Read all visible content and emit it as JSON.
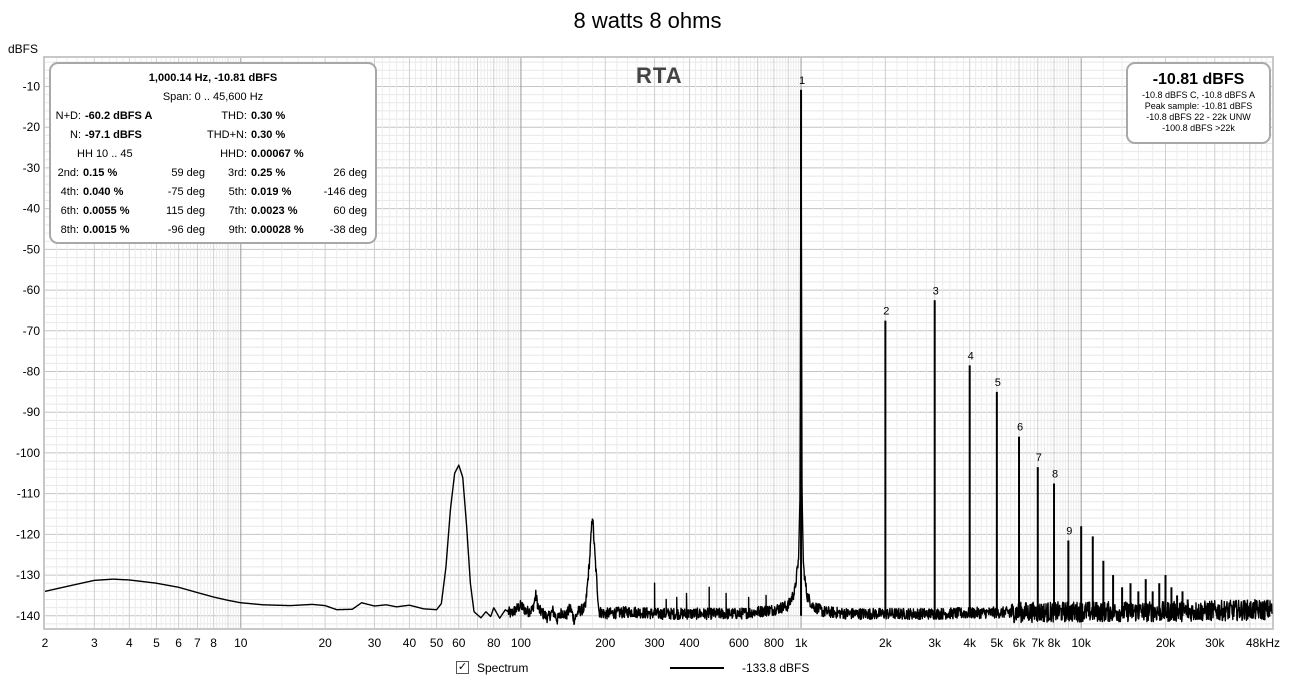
{
  "chart_data": {
    "type": "line",
    "title": "8 watts 8 ohms",
    "ylabel": "dBFS",
    "xlabel": "",
    "overlay_label": "RTA",
    "x_scale": "log",
    "xlim": [
      2,
      48000
    ],
    "ylim": [
      -143,
      -3
    ],
    "grid": true,
    "y_ticks": [
      -10,
      -20,
      -30,
      -40,
      -50,
      -60,
      -70,
      -80,
      -90,
      -100,
      -110,
      -120,
      -130,
      -140
    ],
    "x_ticks": [
      {
        "v": 2,
        "label": "2"
      },
      {
        "v": 3,
        "label": "3"
      },
      {
        "v": 4,
        "label": "4"
      },
      {
        "v": 5,
        "label": "5"
      },
      {
        "v": 6,
        "label": "6"
      },
      {
        "v": 7,
        "label": "7"
      },
      {
        "v": 8,
        "label": "8"
      },
      {
        "v": 10,
        "label": "10"
      },
      {
        "v": 20,
        "label": "20"
      },
      {
        "v": 30,
        "label": "30"
      },
      {
        "v": 40,
        "label": "40"
      },
      {
        "v": 50,
        "label": "50"
      },
      {
        "v": 60,
        "label": "60"
      },
      {
        "v": 80,
        "label": "80"
      },
      {
        "v": 100,
        "label": "100"
      },
      {
        "v": 200,
        "label": "200"
      },
      {
        "v": 300,
        "label": "300"
      },
      {
        "v": 400,
        "label": "400"
      },
      {
        "v": 600,
        "label": "600"
      },
      {
        "v": 800,
        "label": "800"
      },
      {
        "v": 1000,
        "label": "1k"
      },
      {
        "v": 2000,
        "label": "2k"
      },
      {
        "v": 3000,
        "label": "3k"
      },
      {
        "v": 4000,
        "label": "4k"
      },
      {
        "v": 5000,
        "label": "5k"
      },
      {
        "v": 6000,
        "label": "6k"
      },
      {
        "v": 7000,
        "label": "7k"
      },
      {
        "v": 8000,
        "label": "8k"
      },
      {
        "v": 10000,
        "label": "10k"
      },
      {
        "v": 20000,
        "label": "20k"
      },
      {
        "v": 30000,
        "label": "30k"
      },
      {
        "v": 48000,
        "label": "48kHz"
      }
    ],
    "series": [
      {
        "name": "Spectrum",
        "color": "#000000",
        "baseline": [
          [
            2,
            -134
          ],
          [
            2.5,
            -132.5
          ],
          [
            3,
            -131.3
          ],
          [
            3.5,
            -131
          ],
          [
            4,
            -131.2
          ],
          [
            5,
            -132
          ],
          [
            6,
            -133
          ],
          [
            7,
            -134.3
          ],
          [
            8,
            -135.4
          ],
          [
            9,
            -136.2
          ],
          [
            10,
            -136.8
          ],
          [
            12,
            -137.3
          ],
          [
            15,
            -137.5
          ],
          [
            18,
            -137.2
          ],
          [
            20,
            -137.5
          ],
          [
            22,
            -138.5
          ],
          [
            25,
            -138.4
          ],
          [
            27,
            -136.8
          ],
          [
            30,
            -137.6
          ],
          [
            33,
            -137.3
          ],
          [
            36,
            -137.8
          ],
          [
            40,
            -137.4
          ],
          [
            45,
            -138.3
          ],
          [
            50,
            -138.5
          ],
          [
            52,
            -137
          ],
          [
            54,
            -128
          ],
          [
            56,
            -114
          ],
          [
            58,
            -105
          ],
          [
            60,
            -103
          ],
          [
            62,
            -106
          ],
          [
            64,
            -118
          ],
          [
            66,
            -132
          ],
          [
            68,
            -139
          ],
          [
            72,
            -140.5
          ],
          [
            75,
            -139
          ],
          [
            78,
            -140.2
          ],
          [
            80,
            -138
          ],
          [
            84,
            -140.6
          ],
          [
            88,
            -138.5
          ],
          [
            92,
            -139.5
          ],
          [
            100,
            -137.5
          ],
          [
            105,
            -139
          ],
          [
            110,
            -138.5
          ],
          [
            113,
            -135
          ],
          [
            116,
            -138.6
          ],
          [
            125,
            -140.5
          ],
          [
            130,
            -138.8
          ],
          [
            135,
            -141
          ],
          [
            140,
            -139
          ],
          [
            145,
            -140
          ],
          [
            150,
            -138
          ],
          [
            155,
            -141
          ],
          [
            160,
            -139
          ],
          [
            170,
            -138
          ],
          [
            176,
            -126
          ],
          [
            180,
            -115
          ],
          [
            184,
            -126
          ],
          [
            190,
            -139
          ],
          [
            200,
            -139.5
          ],
          [
            250,
            -139
          ],
          [
            300,
            -139.5
          ],
          [
            400,
            -139.5
          ],
          [
            500,
            -139.5
          ],
          [
            600,
            -139.5
          ],
          [
            700,
            -139
          ],
          [
            800,
            -138.5
          ],
          [
            900,
            -137.5
          ],
          [
            950,
            -134
          ],
          [
            980,
            -126
          ],
          [
            992,
            -110
          ],
          [
            1000,
            -10.8
          ],
          [
            1008,
            -110
          ],
          [
            1020,
            -128
          ],
          [
            1050,
            -135
          ],
          [
            1100,
            -137.5
          ],
          [
            1200,
            -139
          ],
          [
            1500,
            -139.5
          ],
          [
            2000,
            -139.5
          ],
          [
            3000,
            -139.5
          ],
          [
            5000,
            -139.2
          ],
          [
            10000,
            -139
          ],
          [
            20000,
            -139
          ],
          [
            48000,
            -138.5
          ]
        ],
        "noise_db": 1.4,
        "spurs": [
          [
            300,
            -132
          ],
          [
            330,
            -136
          ],
          [
            360,
            -135.5
          ],
          [
            390,
            -134.5
          ],
          [
            470,
            -133
          ],
          [
            540,
            -134.5
          ],
          [
            650,
            -135.5
          ],
          [
            750,
            -135
          ]
        ],
        "harmonics": [
          {
            "n": "1",
            "f": 1000,
            "db": -10.8
          },
          {
            "n": "2",
            "f": 2000,
            "db": -67.5
          },
          {
            "n": "3",
            "f": 3000,
            "db": -62.5
          },
          {
            "n": "4",
            "f": 4000,
            "db": -78.5
          },
          {
            "n": "5",
            "f": 5000,
            "db": -85
          },
          {
            "n": "6",
            "f": 6000,
            "db": -96
          },
          {
            "n": "7",
            "f": 7000,
            "db": -103.5
          },
          {
            "n": "8",
            "f": 8000,
            "db": -107.5
          },
          {
            "n": "9",
            "f": 9000,
            "db": -121.5
          },
          {
            "n": "",
            "f": 10000,
            "db": -118
          },
          {
            "n": "",
            "f": 11000,
            "db": -120.5
          },
          {
            "n": "",
            "f": 12000,
            "db": -126.5
          },
          {
            "n": "",
            "f": 13000,
            "db": -130
          },
          {
            "n": "",
            "f": 14000,
            "db": -133
          },
          {
            "n": "",
            "f": 15000,
            "db": -132
          },
          {
            "n": "",
            "f": 16000,
            "db": -134
          },
          {
            "n": "",
            "f": 17000,
            "db": -131
          },
          {
            "n": "",
            "f": 18000,
            "db": -134
          },
          {
            "n": "",
            "f": 19000,
            "db": -132
          },
          {
            "n": "",
            "f": 20000,
            "db": -130
          },
          {
            "n": "",
            "f": 21000,
            "db": -133
          },
          {
            "n": "",
            "f": 22000,
            "db": -135
          },
          {
            "n": "",
            "f": 23000,
            "db": -134
          },
          {
            "n": "",
            "f": 24000,
            "db": -136
          }
        ]
      }
    ]
  },
  "stats_box": {
    "header1": "1,000.14 Hz, -10.81 dBFS",
    "header2": "Span: 0 .. 45,600 Hz",
    "nd_label": "N+D:",
    "nd_value": "-60.2 dBFS A",
    "thd_label": "THD:",
    "thd_value": "0.30 %",
    "n_label": "N:",
    "n_value": "-97.1 dBFS",
    "thdn_label": "THD+N:",
    "thdn_value": "0.30 %",
    "hh_text": "HH 10 .. 45",
    "hhd_label": "HHD:",
    "hhd_value": "0.00067 %",
    "harmonic_rows": [
      {
        "l1": "2nd:",
        "v1": "0.15 %",
        "d1": "59 deg",
        "l2": "3rd:",
        "v2": "0.25 %",
        "d2": "26 deg"
      },
      {
        "l1": "4th:",
        "v1": "0.040 %",
        "d1": "-75 deg",
        "l2": "5th:",
        "v2": "0.019 %",
        "d2": "-146 deg"
      },
      {
        "l1": "6th:",
        "v1": "0.0055 %",
        "d1": "115 deg",
        "l2": "7th:",
        "v2": "0.0023 %",
        "d2": "60 deg"
      },
      {
        "l1": "8th:",
        "v1": "0.0015 %",
        "d1": "-96 deg",
        "l2": "9th:",
        "v2": "0.00028 %",
        "d2": "-38 deg"
      }
    ]
  },
  "peak_box": {
    "main": "-10.81 dBFS",
    "line1": "-10.8 dBFS C, -10.8 dBFS A",
    "line2": "Peak sample: -10.81 dBFS",
    "line3": "-10.8 dBFS 22 - 22k UNW",
    "line4": "-100.8 dBFS >22k"
  },
  "legend": {
    "checkbox_checked": true,
    "check_glyph": "✓",
    "series_label": "Spectrum",
    "value_label": "-133.8 dBFS"
  }
}
